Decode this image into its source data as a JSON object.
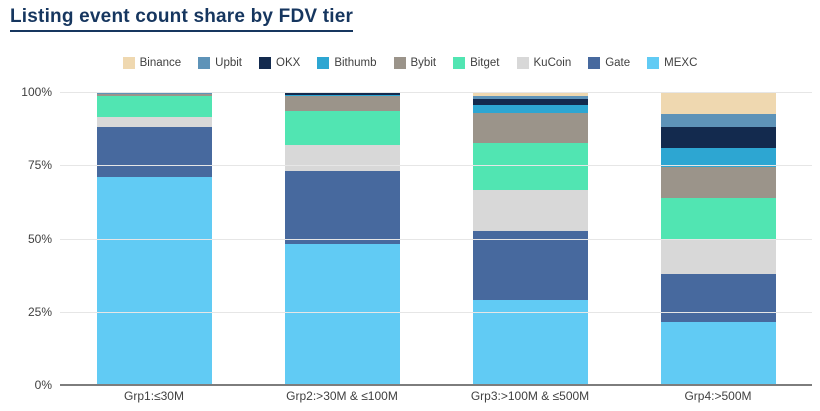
{
  "title": "Listing event count share by FDV tier",
  "chart_data": {
    "type": "bar",
    "stacked": true,
    "unit": "%",
    "title": "Listing event count share by FDV tier",
    "xlabel": "",
    "ylabel": "",
    "ylim": [
      0,
      100
    ],
    "yticks": [
      0,
      25,
      50,
      75,
      100
    ],
    "ytick_labels": [
      "0%",
      "25%",
      "50%",
      "75%",
      "100%"
    ],
    "grid": "horizontal",
    "legend_position": "top",
    "categories": [
      "Grp1:≤30M",
      "Grp2:>30M & ≤100M",
      "Grp3:>100M & ≤500M",
      "Grp4:>500M"
    ],
    "series": [
      {
        "name": "Binance",
        "color": "#efd8b0",
        "values": [
          0,
          0,
          1.5,
          7.5
        ]
      },
      {
        "name": "Upbit",
        "color": "#5e93b8",
        "values": [
          0.5,
          0,
          1,
          4.5
        ]
      },
      {
        "name": "OKX",
        "color": "#132a4e",
        "values": [
          0,
          1,
          2,
          7
        ]
      },
      {
        "name": "Bithumb",
        "color": "#2da6d2",
        "values": [
          0,
          0.5,
          2.5,
          6.5
        ]
      },
      {
        "name": "Bybit",
        "color": "#9b948a",
        "values": [
          1,
          5,
          10.5,
          10.5
        ]
      },
      {
        "name": "Bitget",
        "color": "#51e5b2",
        "values": [
          7,
          11.5,
          16,
          14.5
        ]
      },
      {
        "name": "KuCoin",
        "color": "#d8d8d8",
        "values": [
          3.5,
          9,
          14,
          11.5
        ]
      },
      {
        "name": "Gate",
        "color": "#47699e",
        "values": [
          17,
          25,
          23.5,
          16.5
        ]
      },
      {
        "name": "MEXC",
        "color": "#61cbf4",
        "values": [
          71,
          48,
          29,
          21.5
        ]
      }
    ],
    "stack_order_bottom_to_top": [
      "MEXC",
      "Gate",
      "KuCoin",
      "Bitget",
      "Bybit",
      "Bithumb",
      "OKX",
      "Upbit",
      "Binance"
    ]
  },
  "style": {
    "title_color": "#16365f",
    "gridline_color": "#e6e6e6",
    "axis_color": "#7d7d7d",
    "tick_text_color": "#404040"
  }
}
